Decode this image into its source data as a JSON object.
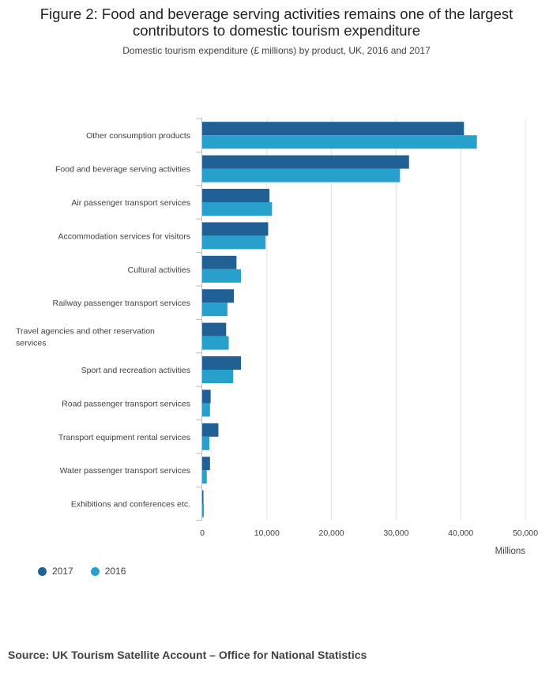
{
  "title_line1": "Figure 2: Food and beverage serving activities remains one of the largest",
  "title_line2": "contributors to domestic tourism expenditure",
  "subtitle": "Domestic tourism expenditure (£ millions) by product, UK, 2016 and 2017",
  "source": "Source: UK Tourism Satellite Account – Office for National Statistics",
  "colors": {
    "series_2017": "#206095",
    "series_2016": "#27a0cc",
    "grid": "#e0e0e0",
    "axis": "#bbbbbb"
  },
  "chart_data": {
    "type": "bar",
    "orientation": "horizontal",
    "categories": [
      "Other consumption products",
      "Food and beverage serving activities",
      "Air passenger transport services",
      "Accommodation services for visitors",
      "Cultural activities",
      "Railway passenger transport services",
      "Travel agencies and other reservation services",
      "Sport and recreation activities",
      "Road passenger transport services",
      "Transport equipment rental services",
      "Water passenger transport services",
      "Exhibitions and conferences etc."
    ],
    "series": [
      {
        "name": "2017",
        "values": [
          40500,
          32000,
          10400,
          10200,
          5300,
          4900,
          3700,
          6000,
          1300,
          2500,
          1200,
          150
        ]
      },
      {
        "name": "2016",
        "values": [
          42500,
          30600,
          10800,
          9800,
          6000,
          3900,
          4100,
          4800,
          1200,
          1100,
          700,
          250
        ]
      }
    ],
    "xlim": [
      0,
      50000
    ],
    "xticks": [
      0,
      10000,
      20000,
      30000,
      40000,
      50000
    ],
    "xtick_labels": [
      "0",
      "10,000",
      "20,000",
      "30,000",
      "40,000",
      "50,000"
    ],
    "xlabel": "Millions",
    "legend": [
      "2017",
      "2016"
    ],
    "legend_position": "bottom-left",
    "grid": true
  }
}
